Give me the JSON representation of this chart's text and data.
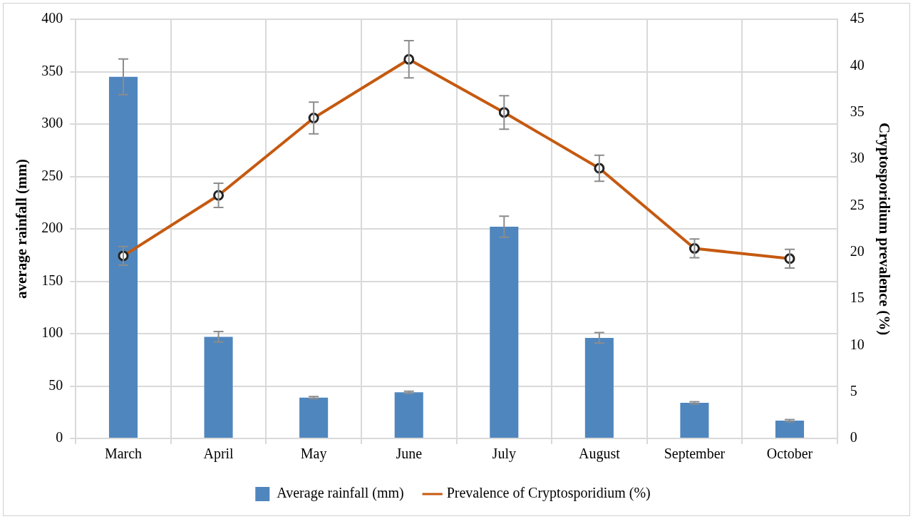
{
  "chart_data": {
    "type": "bar",
    "xlabel": null,
    "ylabel": "average rainfall (mm)",
    "y2label": "Cryptosporidium prevalence (%)",
    "categories": [
      "March",
      "April",
      "May",
      "June",
      "July",
      "August",
      "September",
      "October"
    ],
    "series": [
      {
        "name": "Average rainfall (mm)",
        "color": "#4f86be",
        "values": [
          345,
          97,
          39,
          44,
          202,
          96,
          34,
          17
        ],
        "errors": [
          17,
          5,
          1,
          1,
          10,
          5,
          1,
          1
        ]
      },
      {
        "name": "Prevalence of Cryptosporidium (%)",
        "type": "line",
        "axis": "y2",
        "color": "#c55a11",
        "marker": "circle",
        "values": [
          19.6,
          26.1,
          34.4,
          40.7,
          35.0,
          29.0,
          20.4,
          19.3
        ],
        "errors": [
          1.0,
          1.3,
          1.7,
          2.0,
          1.8,
          1.4,
          1.0,
          1.0
        ]
      }
    ],
    "ylim": [
      0,
      400
    ],
    "yticks": [
      0,
      50,
      100,
      150,
      200,
      250,
      300,
      350,
      400
    ],
    "y2lim": [
      0,
      45
    ],
    "y2ticks": [
      0,
      5,
      10,
      15,
      20,
      25,
      30,
      35,
      40,
      45
    ],
    "grid": true,
    "legend": "bottom"
  }
}
